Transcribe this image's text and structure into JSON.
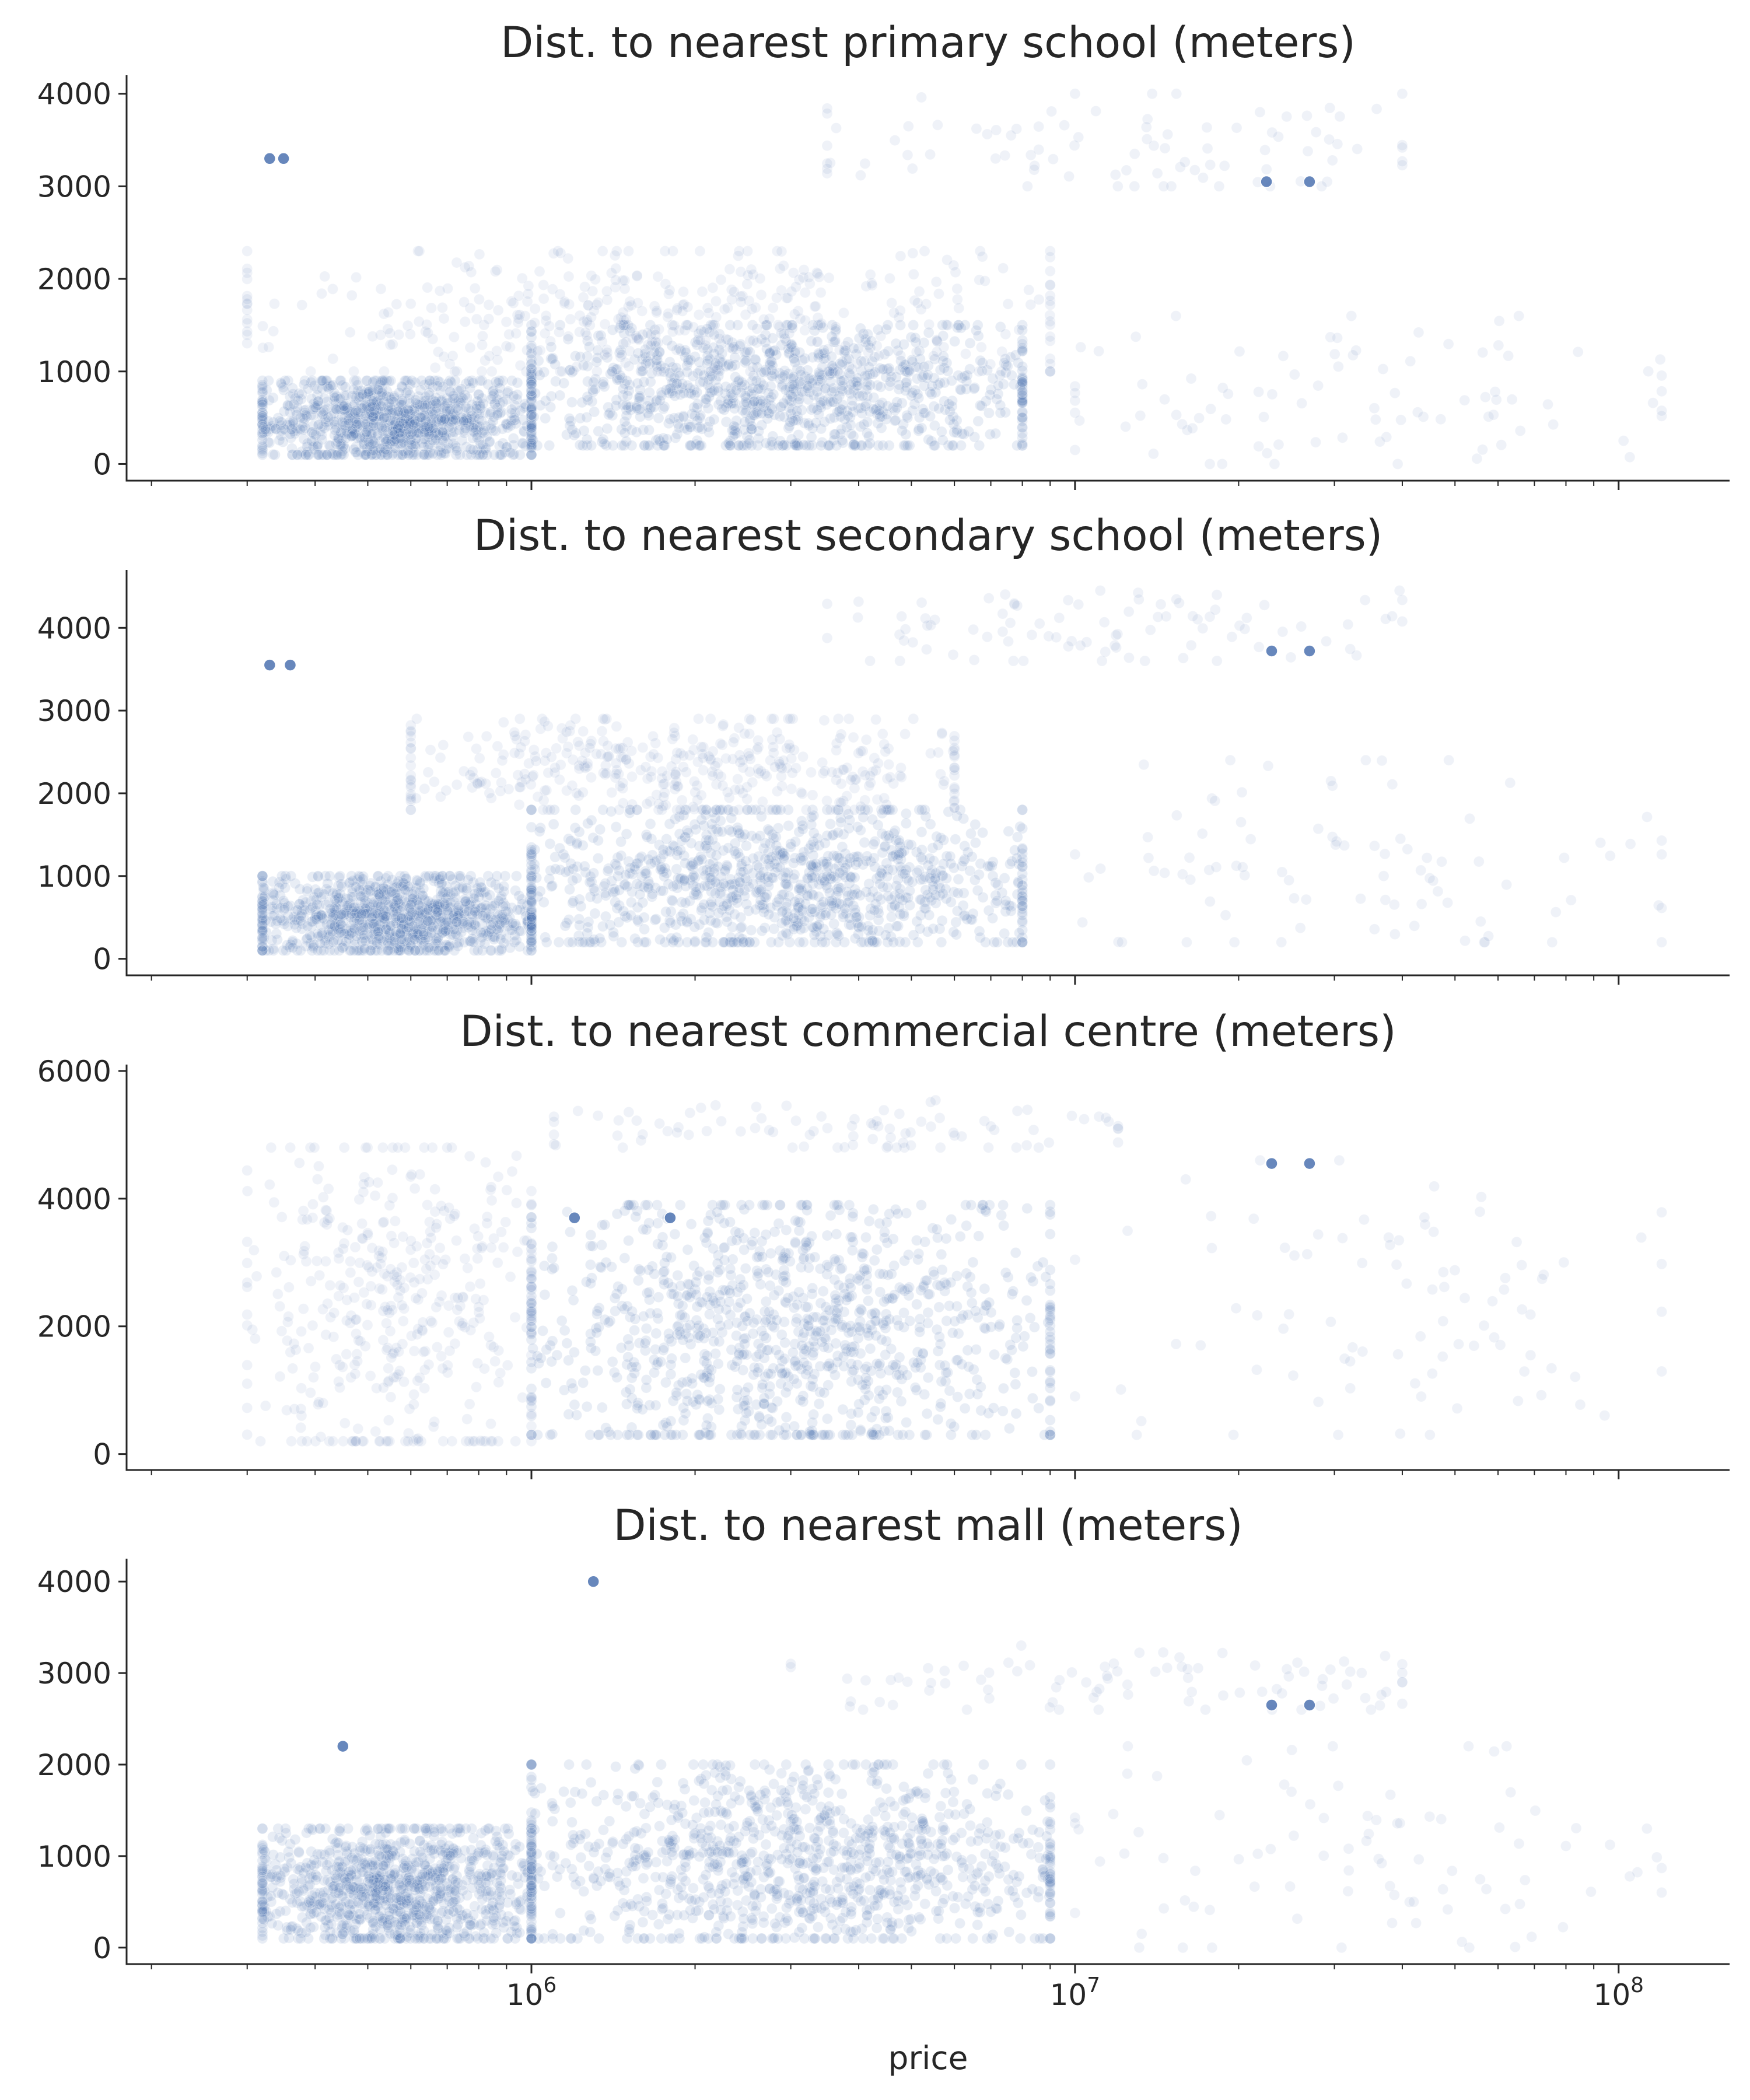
{
  "chart_data": [
    {
      "type": "scatter",
      "title": "Dist. to nearest primary school (meters)",
      "xlabel": "",
      "ylabel": "",
      "x_scale": "log",
      "xlim": [
        180000,
        160000000
      ],
      "ylim": [
        -180,
        4200
      ],
      "x_tick_labels": [
        "",
        "",
        ""
      ],
      "y_ticks": [
        0,
        1000,
        2000,
        3000,
        4000
      ],
      "y_tick_labels": [
        "0",
        "1000",
        "2000",
        "3000",
        "4000"
      ],
      "color": "#4c72b0",
      "clusters": [
        {
          "x_range": [
            320000,
            1000000
          ],
          "y_range": [
            100,
            900
          ],
          "density": "high"
        },
        {
          "x_range": [
            1000000,
            8000000
          ],
          "y_range": [
            200,
            1500
          ],
          "density": "high"
        },
        {
          "x_range": [
            300000,
            9000000
          ],
          "y_range": [
            1000,
            2300
          ],
          "density": "medium"
        },
        {
          "x_range": [
            3500000,
            40000000
          ],
          "y_range": [
            3000,
            4000
          ],
          "density": "sparse"
        },
        {
          "x_range": [
            10000000,
            120000000
          ],
          "y_range": [
            0,
            1600
          ],
          "density": "sparse"
        }
      ],
      "highlighted_points": [
        [
          22500000,
          3050
        ],
        [
          27000000,
          3050
        ],
        [
          330000,
          3300
        ],
        [
          350000,
          3300
        ]
      ]
    },
    {
      "type": "scatter",
      "title": "Dist. to nearest secondary school (meters)",
      "xlabel": "",
      "ylabel": "",
      "x_scale": "log",
      "xlim": [
        180000,
        160000000
      ],
      "ylim": [
        -200,
        4700
      ],
      "x_tick_labels": [
        "",
        "",
        ""
      ],
      "y_ticks": [
        0,
        1000,
        2000,
        3000,
        4000
      ],
      "y_tick_labels": [
        "0",
        "1000",
        "2000",
        "3000",
        "4000"
      ],
      "color": "#4c72b0",
      "clusters": [
        {
          "x_range": [
            320000,
            1000000
          ],
          "y_range": [
            100,
            1000
          ],
          "density": "high"
        },
        {
          "x_range": [
            1000000,
            8000000
          ],
          "y_range": [
            200,
            1800
          ],
          "density": "high"
        },
        {
          "x_range": [
            600000,
            6000000
          ],
          "y_range": [
            1800,
            2900
          ],
          "density": "medium"
        },
        {
          "x_range": [
            3500000,
            40000000
          ],
          "y_range": [
            3600,
            4450
          ],
          "density": "sparse"
        },
        {
          "x_range": [
            10000000,
            120000000
          ],
          "y_range": [
            200,
            2400
          ],
          "density": "sparse"
        }
      ],
      "highlighted_points": [
        [
          23000000,
          3720
        ],
        [
          27000000,
          3720
        ],
        [
          330000,
          3550
        ],
        [
          360000,
          3550
        ]
      ]
    },
    {
      "type": "scatter",
      "title": "Dist. to nearest commercial centre (meters)",
      "xlabel": "",
      "ylabel": "",
      "x_scale": "log",
      "xlim": [
        180000,
        160000000
      ],
      "ylim": [
        -250,
        6100
      ],
      "x_tick_labels": [
        "",
        "",
        ""
      ],
      "y_ticks": [
        0,
        2000,
        4000,
        6000
      ],
      "y_tick_labels": [
        "0",
        "2000",
        "4000",
        "6000"
      ],
      "color": "#4c72b0",
      "clusters": [
        {
          "x_range": [
            300000,
            1000000
          ],
          "y_range": [
            200,
            4800
          ],
          "density": "medium"
        },
        {
          "x_range": [
            1000000,
            9000000
          ],
          "y_range": [
            300,
            3900
          ],
          "density": "high"
        },
        {
          "x_range": [
            1100000,
            12000000
          ],
          "y_range": [
            4800,
            5600
          ],
          "density": "sparse"
        },
        {
          "x_range": [
            10000000,
            120000000
          ],
          "y_range": [
            300,
            4600
          ],
          "density": "sparse"
        }
      ],
      "highlighted_points": [
        [
          23000000,
          4550
        ],
        [
          27000000,
          4550
        ],
        [
          1200000,
          3700
        ],
        [
          1800000,
          3700
        ]
      ]
    },
    {
      "type": "scatter",
      "title": "Dist. to nearest mall (meters)",
      "xlabel": "price",
      "ylabel": "",
      "x_scale": "log",
      "xlim": [
        180000,
        160000000
      ],
      "ylim": [
        -180,
        4250
      ],
      "x_ticks": [
        1000000,
        10000000,
        100000000
      ],
      "x_tick_labels": [
        "10^6",
        "10^7",
        "10^8"
      ],
      "y_ticks": [
        0,
        1000,
        2000,
        3000,
        4000
      ],
      "y_tick_labels": [
        "0",
        "1000",
        "2000",
        "3000",
        "4000"
      ],
      "color": "#4c72b0",
      "clusters": [
        {
          "x_range": [
            320000,
            1000000
          ],
          "y_range": [
            100,
            1300
          ],
          "density": "high"
        },
        {
          "x_range": [
            1000000,
            9000000
          ],
          "y_range": [
            100,
            2000
          ],
          "density": "high"
        },
        {
          "x_range": [
            3000000,
            40000000
          ],
          "y_range": [
            2600,
            3300
          ],
          "density": "sparse"
        },
        {
          "x_range": [
            10000000,
            120000000
          ],
          "y_range": [
            0,
            2200
          ],
          "density": "sparse"
        }
      ],
      "highlighted_points": [
        [
          23000000,
          2650
        ],
        [
          27000000,
          2650
        ],
        [
          450000,
          2200
        ],
        [
          1300000,
          4000
        ]
      ]
    }
  ]
}
